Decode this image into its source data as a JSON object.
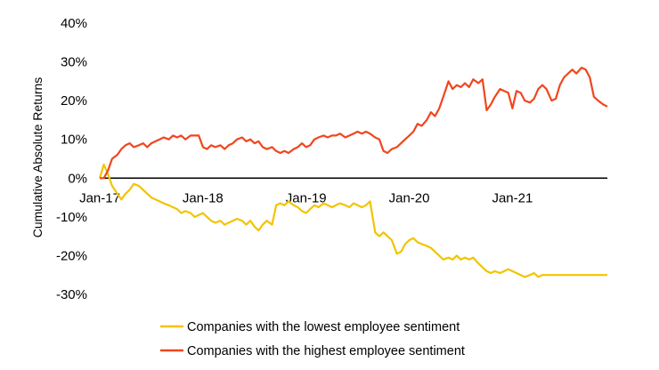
{
  "chart_data": {
    "type": "line",
    "ylabel": "Cumulative Absolute Returns",
    "xlabel": "",
    "ylim": [
      -30,
      40
    ],
    "yticks": [
      {
        "value": 40,
        "label": "40%"
      },
      {
        "value": 30,
        "label": "30%"
      },
      {
        "value": 20,
        "label": "20%"
      },
      {
        "value": 10,
        "label": "10%"
      },
      {
        "value": 0,
        "label": "0%"
      },
      {
        "value": -10,
        "label": "-10%"
      },
      {
        "value": -20,
        "label": "-20%"
      },
      {
        "value": -30,
        "label": "-30%"
      }
    ],
    "xlim": [
      2017.0,
      2021.92
    ],
    "xticks": [
      {
        "value": 2017.0,
        "label": "Jan-17"
      },
      {
        "value": 2018.0,
        "label": "Jan-18"
      },
      {
        "value": 2019.0,
        "label": "Jan-19"
      },
      {
        "value": 2020.0,
        "label": "Jan-20"
      },
      {
        "value": 2021.0,
        "label": "Jan-21"
      }
    ],
    "grid": false,
    "legend_position": "bottom",
    "series": [
      {
        "name": "Companies with the lowest employee sentiment",
        "color": "#F2C400",
        "x": [
          2017.0,
          2017.04,
          2017.08,
          2017.12,
          2017.17,
          2017.21,
          2017.25,
          2017.29,
          2017.33,
          2017.38,
          2017.42,
          2017.46,
          2017.5,
          2017.54,
          2017.58,
          2017.62,
          2017.67,
          2017.71,
          2017.75,
          2017.79,
          2017.83,
          2017.88,
          2017.92,
          2017.96,
          2018.0,
          2018.04,
          2018.08,
          2018.12,
          2018.17,
          2018.21,
          2018.25,
          2018.29,
          2018.33,
          2018.38,
          2018.42,
          2018.46,
          2018.5,
          2018.54,
          2018.58,
          2018.62,
          2018.67,
          2018.71,
          2018.75,
          2018.79,
          2018.83,
          2018.88,
          2018.92,
          2018.96,
          2019.0,
          2019.04,
          2019.08,
          2019.12,
          2019.17,
          2019.21,
          2019.25,
          2019.29,
          2019.33,
          2019.38,
          2019.42,
          2019.46,
          2019.5,
          2019.54,
          2019.58,
          2019.62,
          2019.67,
          2019.71,
          2019.75,
          2019.79,
          2019.83,
          2019.88,
          2019.92,
          2019.96,
          2020.0,
          2020.04,
          2020.08,
          2020.12,
          2020.17,
          2020.21,
          2020.25,
          2020.29,
          2020.33,
          2020.38,
          2020.42,
          2020.46,
          2020.5,
          2020.54,
          2020.58,
          2020.62,
          2020.67,
          2020.71,
          2020.75,
          2020.79,
          2020.83,
          2020.88,
          2020.92,
          2020.96,
          2021.0,
          2021.04,
          2021.08,
          2021.12,
          2021.17,
          2021.21,
          2021.25,
          2021.29,
          2021.33,
          2021.38,
          2021.42,
          2021.46,
          2021.5,
          2021.54,
          2021.58,
          2021.62,
          2021.67,
          2021.71,
          2021.75,
          2021.79,
          2021.83,
          2021.88,
          2021.92
        ],
        "values": [
          0,
          3.5,
          1,
          -2,
          -4,
          -5.5,
          -4,
          -3,
          -1.5,
          -2,
          -3,
          -4,
          -5,
          -5.5,
          -6,
          -6.5,
          -7,
          -7.5,
          -8,
          -9,
          -8.5,
          -9,
          -10,
          -9.5,
          -9,
          -10,
          -11,
          -11.5,
          -11,
          -12,
          -11.5,
          -11,
          -10.5,
          -11,
          -12,
          -11,
          -12.5,
          -13.5,
          -12,
          -11,
          -12,
          -7,
          -6.5,
          -7,
          -6,
          -7,
          -7.5,
          -8.5,
          -9,
          -8,
          -7,
          -7.5,
          -6.5,
          -7,
          -7.5,
          -7,
          -6.5,
          -7,
          -7.5,
          -6.5,
          -7,
          -7.5,
          -7,
          -6,
          -14,
          -15,
          -14,
          -15,
          -16,
          -19.5,
          -19,
          -17,
          -16,
          -15.5,
          -16.5,
          -17,
          -17.5,
          -18,
          -19,
          -20,
          -21,
          -20.5,
          -21,
          -20,
          -21,
          -20.5,
          -21,
          -20.5,
          -22,
          -23,
          -24,
          -24.5,
          -24,
          -24.5,
          -24,
          -23.5,
          -24,
          -24.5,
          -25,
          -25.5,
          -25,
          -24.5,
          -25.5,
          -25,
          -25,
          -25,
          -25,
          -25,
          -25,
          -25,
          -25,
          -25,
          -25,
          -25,
          -25,
          -25,
          -25,
          -25,
          -25
        ]
      },
      {
        "name": "Companies with the highest employee sentiment",
        "color": "#F0461E",
        "x": [
          2017.0,
          2017.04,
          2017.08,
          2017.12,
          2017.17,
          2017.21,
          2017.25,
          2017.29,
          2017.33,
          2017.38,
          2017.42,
          2017.46,
          2017.5,
          2017.54,
          2017.58,
          2017.62,
          2017.67,
          2017.71,
          2017.75,
          2017.79,
          2017.83,
          2017.88,
          2017.92,
          2017.96,
          2018.0,
          2018.04,
          2018.08,
          2018.12,
          2018.17,
          2018.21,
          2018.25,
          2018.29,
          2018.33,
          2018.38,
          2018.42,
          2018.46,
          2018.5,
          2018.54,
          2018.58,
          2018.62,
          2018.67,
          2018.71,
          2018.75,
          2018.79,
          2018.83,
          2018.88,
          2018.92,
          2018.96,
          2019.0,
          2019.04,
          2019.08,
          2019.12,
          2019.17,
          2019.21,
          2019.25,
          2019.29,
          2019.33,
          2019.38,
          2019.42,
          2019.46,
          2019.5,
          2019.54,
          2019.58,
          2019.62,
          2019.67,
          2019.71,
          2019.75,
          2019.79,
          2019.83,
          2019.88,
          2019.92,
          2019.96,
          2020.0,
          2020.04,
          2020.08,
          2020.12,
          2020.17,
          2020.21,
          2020.25,
          2020.29,
          2020.33,
          2020.38,
          2020.42,
          2020.46,
          2020.5,
          2020.54,
          2020.58,
          2020.62,
          2020.67,
          2020.71,
          2020.75,
          2020.79,
          2020.83,
          2020.88,
          2020.92,
          2020.96,
          2021.0,
          2021.04,
          2021.08,
          2021.12,
          2021.17,
          2021.21,
          2021.25,
          2021.29,
          2021.33,
          2021.38,
          2021.42,
          2021.46,
          2021.5,
          2021.54,
          2021.58,
          2021.62,
          2021.67,
          2021.71,
          2021.75,
          2021.79,
          2021.83,
          2021.88,
          2021.92
        ],
        "values": [
          0,
          0,
          2,
          5,
          6,
          7.5,
          8.5,
          9,
          8,
          8.5,
          9,
          8,
          9,
          9.5,
          10,
          10.5,
          10,
          11,
          10.5,
          11,
          10,
          11,
          11,
          11,
          8,
          7.5,
          8.5,
          8,
          8.5,
          7.5,
          8.5,
          9,
          10,
          10.5,
          9.5,
          10,
          9,
          9.5,
          8,
          7.5,
          8,
          7,
          6.5,
          7,
          6.5,
          7.5,
          8,
          9,
          8,
          8.5,
          10,
          10.5,
          11,
          10.5,
          11,
          11,
          11.5,
          10.5,
          11,
          11.5,
          12,
          11.5,
          12,
          11.5,
          10.5,
          10,
          7,
          6.5,
          7.5,
          8,
          9,
          10,
          11,
          12,
          14,
          13.5,
          15,
          17,
          16,
          18,
          21,
          25,
          23,
          24,
          23.5,
          24.5,
          23.5,
          25.5,
          24.5,
          25.5,
          17.5,
          19,
          21,
          23,
          22.5,
          22,
          18,
          22.5,
          22,
          20,
          19.5,
          20.5,
          23,
          24,
          23,
          20,
          20.5,
          24,
          26,
          27,
          28,
          27,
          28.5,
          28,
          26,
          21,
          20,
          19,
          18.5
        ]
      }
    ]
  }
}
